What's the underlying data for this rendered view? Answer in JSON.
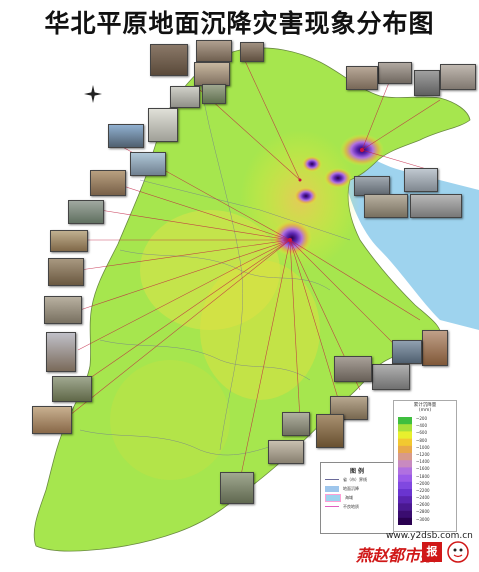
{
  "title": "华北平原地面沉降灾害现象分布图",
  "legend": {
    "title": "图 例",
    "items": [
      {
        "label": "省（市）界线",
        "color": "#6a6a9a"
      },
      {
        "label": "地面沉降",
        "color": "#9ec6ec"
      },
      {
        "label": "海域",
        "color": "#ff9fd6"
      },
      {
        "label": "不良地质",
        "color": "#e060c0"
      }
    ]
  },
  "scale": {
    "title": "累计沉降量\n(mm)",
    "labels": [
      "~200",
      "~400",
      "~600",
      "~800",
      "~1000",
      "~1200",
      "~1400",
      "~1600",
      "~1800",
      "~2000",
      "~2200",
      "~2400",
      "~2600",
      "~2800",
      "~3000"
    ],
    "colors": [
      "#3fbf3f",
      "#a8e03a",
      "#e8f02e",
      "#f2c830",
      "#e8a84a",
      "#d89a8a",
      "#c88ac0",
      "#b070e0",
      "#9a5ae8",
      "#8048e0",
      "#6a34d0",
      "#5a24b0",
      "#4a1890",
      "#3a0c70",
      "#2a0050"
    ]
  },
  "website": "www.y2dsb.com.cn",
  "brand": {
    "name": "燕赵都市报",
    "badge": "报"
  },
  "colors": {
    "plain": "#a6e64e",
    "sea": "#9ed3ee",
    "hotspot": "#5a1fb8"
  }
}
